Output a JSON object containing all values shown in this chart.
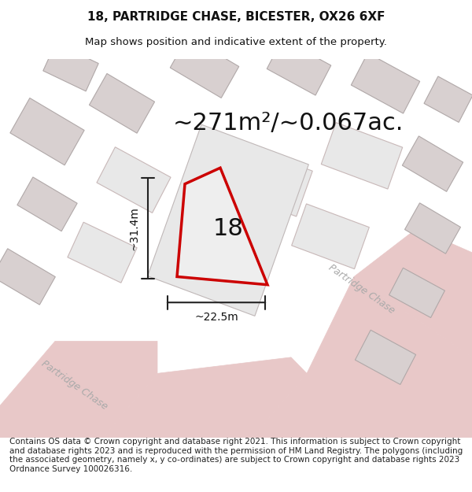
{
  "title_line1": "18, PARTRIDGE CHASE, BICESTER, OX26 6XF",
  "title_line2": "Map shows position and indicative extent of the property.",
  "area_text": "~271m²/~0.067ac.",
  "label_18": "18",
  "dim_height": "~31.4m",
  "dim_width": "~22.5m",
  "footer_text": "Contains OS data © Crown copyright and database right 2021. This information is subject to Crown copyright and database rights 2023 and is reproduced with the permission of HM Land Registry. The polygons (including the associated geometry, namely x, y co-ordinates) are subject to Crown copyright and database rights 2023 Ordnance Survey 100026316.",
  "bg_color": "#f5f5f5",
  "map_bg": "#f0eeee",
  "plot_fill": "#e8e8e8",
  "plot_outline": "#cc0000",
  "road_color": "#e8c8c8",
  "building_color": "#d8d0d0",
  "street_label1": "Partridge Chase",
  "street_label2": "Partridge Chase",
  "title_fontsize": 11,
  "subtitle_fontsize": 9.5,
  "area_fontsize": 22,
  "label_fontsize": 22,
  "dim_fontsize": 10,
  "footer_fontsize": 7.5
}
